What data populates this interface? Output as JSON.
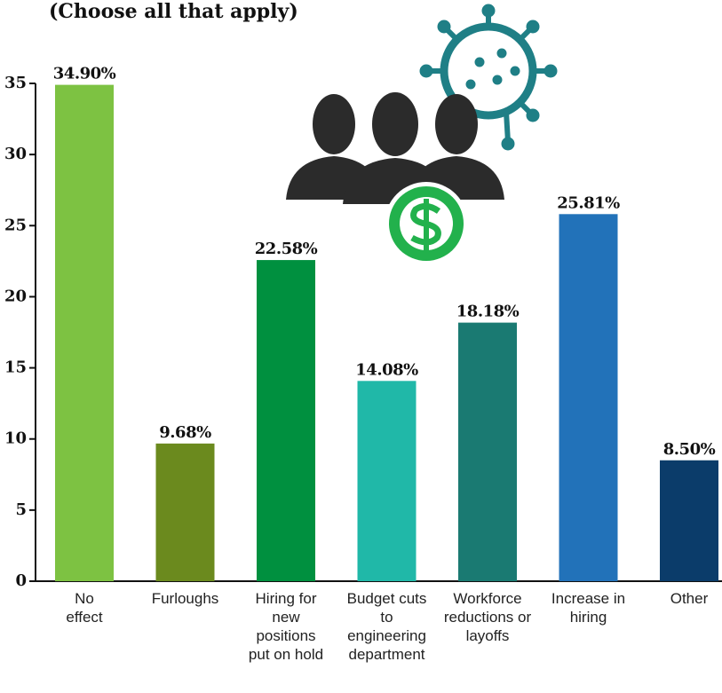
{
  "chart_data": {
    "type": "bar",
    "title": "(Choose all that apply)",
    "categories": [
      "No effect",
      "Furloughs",
      "Hiring for new positions put on hold",
      "Budget cuts to engineering department",
      "Workforce reductions or layoffs",
      "Increase in hiring",
      "Other"
    ],
    "values": [
      34.9,
      9.68,
      22.58,
      14.08,
      18.18,
      25.81,
      8.5
    ],
    "value_labels": [
      "34.90%",
      "9.68%",
      "22.58%",
      "14.08%",
      "18.18%",
      "25.81%",
      "8.50%"
    ],
    "colors": [
      "#7dc242",
      "#6b8a1e",
      "#00903f",
      "#20b8a8",
      "#1a7a72",
      "#2272b9",
      "#0b3c6a"
    ],
    "ylim": [
      0,
      35
    ],
    "yticks": [
      0,
      5,
      10,
      15,
      20,
      25,
      30,
      35
    ]
  }
}
